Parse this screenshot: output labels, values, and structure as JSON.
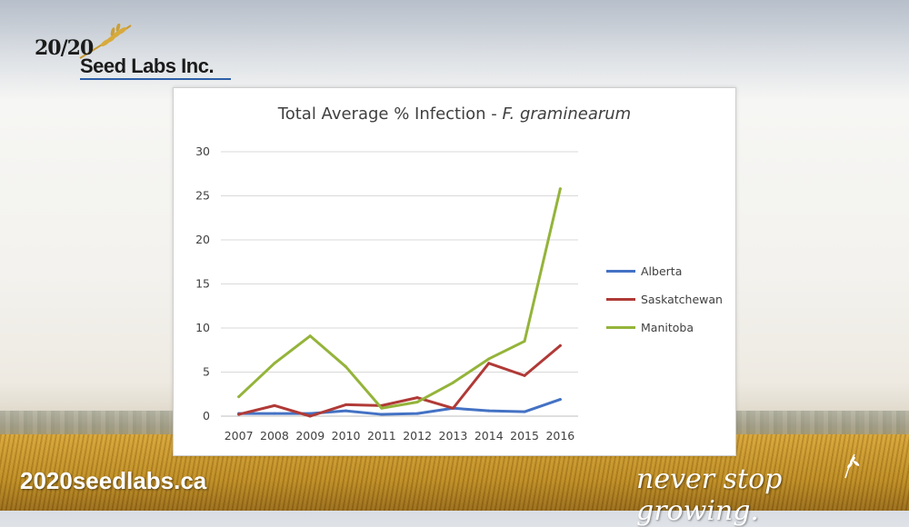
{
  "brand": {
    "logo_number": "20/20",
    "logo_name": "Seed Labs Inc.",
    "website": "2020seedlabs.ca",
    "tagline": "never stop growing."
  },
  "colors": {
    "alberta": "#4472c4",
    "saskatchewan": "#b03a37",
    "manitoba": "#94b43a",
    "gridline": "#d9d9d9",
    "text": "#404040",
    "underline": "#2e5fa8"
  },
  "chart_data": {
    "type": "line",
    "title_main": "Total Average % Infection - ",
    "title_italic": "F. graminearum",
    "categories": [
      "2007",
      "2008",
      "2009",
      "2010",
      "2011",
      "2012",
      "2013",
      "2014",
      "2015",
      "2016"
    ],
    "series": [
      {
        "name": "Alberta",
        "values": [
          0.3,
          0.3,
          0.3,
          0.6,
          0.2,
          0.3,
          0.9,
          0.6,
          0.5,
          1.9
        ]
      },
      {
        "name": "Saskatchewan",
        "values": [
          0.2,
          1.2,
          0.0,
          1.3,
          1.2,
          2.1,
          0.9,
          6.0,
          4.6,
          8.0
        ]
      },
      {
        "name": "Manitoba",
        "values": [
          2.2,
          6.0,
          9.1,
          5.6,
          0.9,
          1.6,
          3.8,
          6.5,
          8.5,
          25.8
        ]
      }
    ],
    "yticks": [
      0,
      5,
      10,
      15,
      20,
      25,
      30
    ],
    "ylim": [
      0,
      30
    ],
    "grid": true,
    "legend_position": "right"
  }
}
